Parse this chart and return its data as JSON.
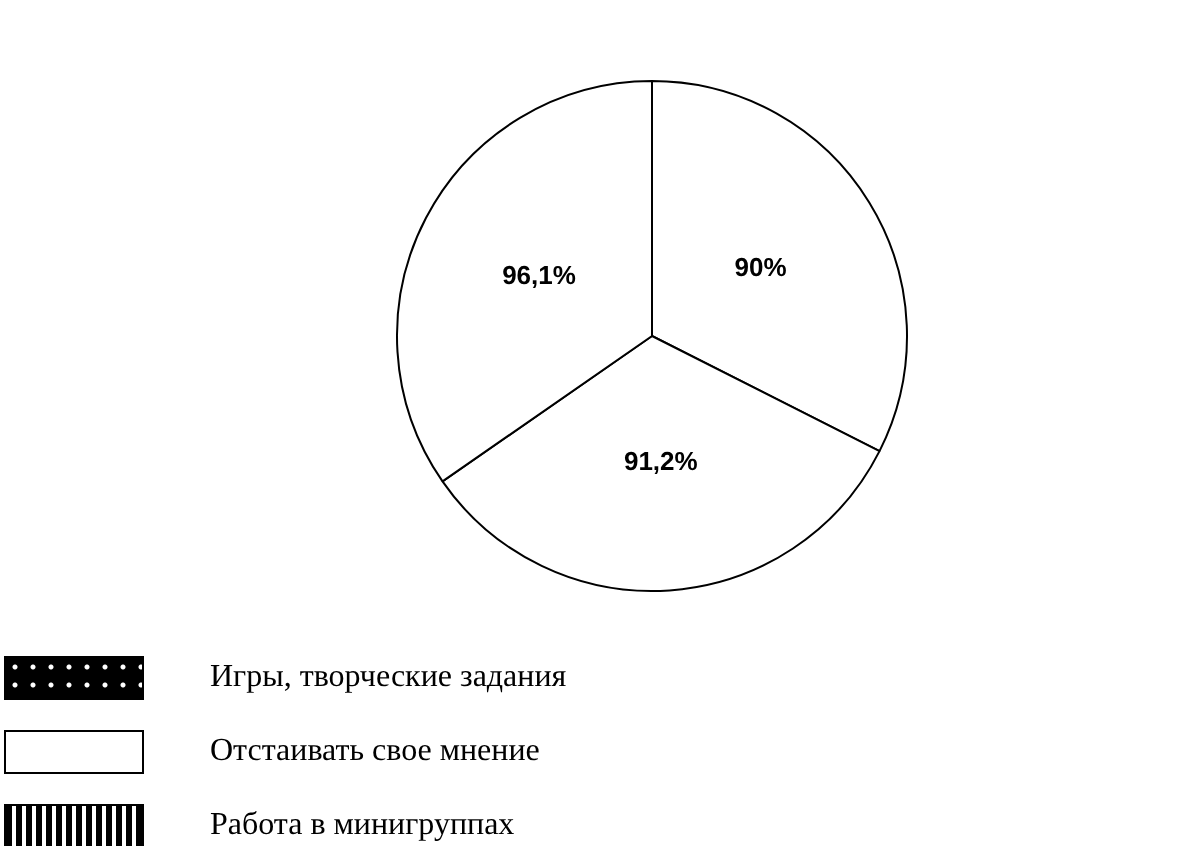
{
  "chart_data": {
    "type": "pie",
    "categories": [
      "Игры, творческие задания",
      "Отстаивать свое мнение",
      "Работа в минигруппах"
    ],
    "values": [
      90,
      91.2,
      96.1
    ],
    "value_labels": [
      "90%",
      "91,2%",
      "96,1%"
    ],
    "colors": [
      "#ffffff",
      "#ffffff",
      "#ffffff"
    ],
    "legend": "bottom left"
  }
}
